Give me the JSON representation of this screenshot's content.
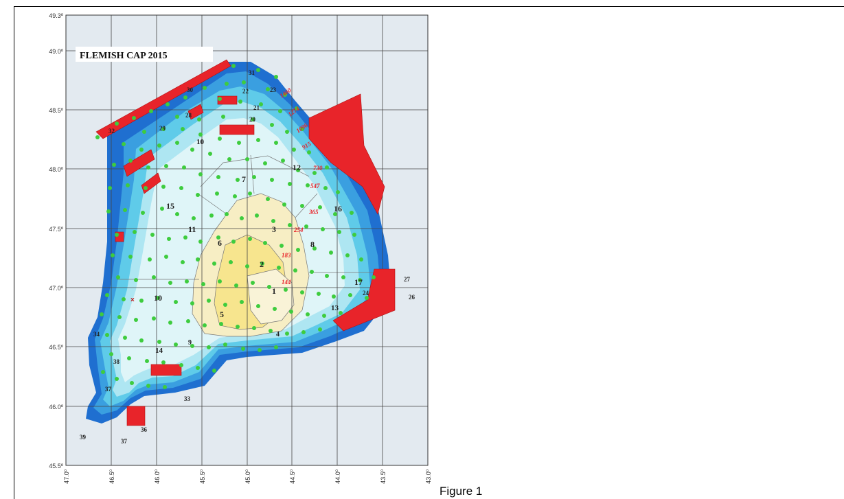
{
  "figure": {
    "title": "FLEMISH CAP 2015",
    "caption": "Figure 1",
    "lat_labels": [
      "49.3º",
      "49.0º",
      "48.5º",
      "48.0º",
      "47.5º",
      "47.0º",
      "46.5º",
      "46.0º",
      "45.5º"
    ],
    "lon_labels": [
      "47.0º",
      "46.5º",
      "46.0º",
      "45.5º",
      "45.0º",
      "44.5º",
      "44.0º",
      "43.5º",
      "43.0º"
    ],
    "stratum_labels": [
      "1",
      "2",
      "3",
      "4",
      "5",
      "6",
      "7",
      "8",
      "9",
      "10",
      "10",
      "11",
      "12",
      "13",
      "14",
      "15",
      "16",
      "17",
      "19",
      "20",
      "21",
      "22",
      "23",
      "24",
      "26",
      "27",
      "28",
      "29",
      "30",
      "31",
      "32",
      "33",
      "34",
      "36",
      "37",
      "37",
      "38",
      "39"
    ],
    "depth_labels": [
      "1460",
      "1274",
      "1096",
      "915",
      "730",
      "547",
      "365",
      "254",
      "183",
      "144"
    ],
    "colors": {
      "map_background": "#e3eaf0",
      "grid": "#444444",
      "deep": "#1f6fd0",
      "mid_deep": "#3a9fe0",
      "mid": "#5fcbe9",
      "shallow": "#aee6f2",
      "very_shallow": "#dff5f8",
      "bank": "#f7eec4",
      "bank_edge": "#f7e58e",
      "closed_area": "#e8242a",
      "station": "#3ecc3e",
      "depth_text": "#e8242a"
    }
  }
}
